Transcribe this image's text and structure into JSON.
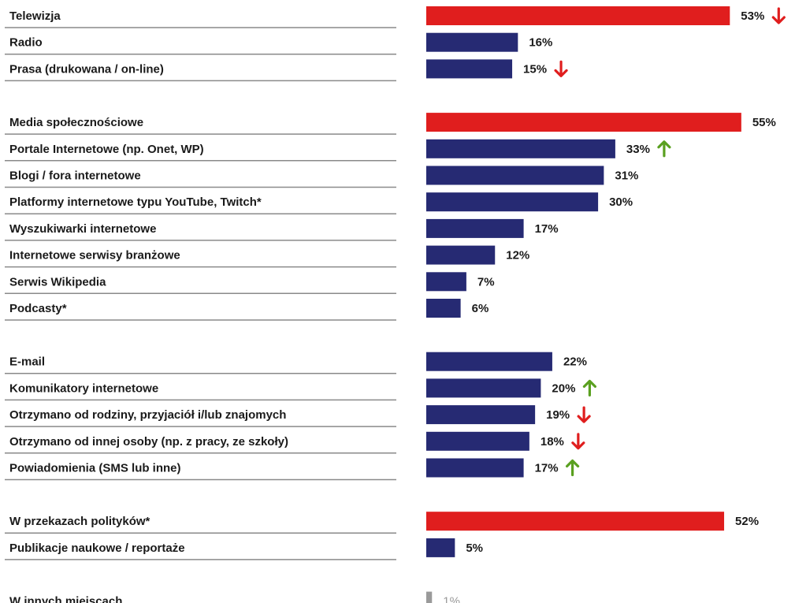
{
  "chart_data": {
    "type": "bar",
    "orientation": "horizontal",
    "unit": "%",
    "xlim": [
      0,
      55
    ],
    "grid": false,
    "legend": "none",
    "colors": {
      "highlight": "#e01e1e",
      "default": "#262a73",
      "muted": "#9a9a9a",
      "up": "#5aa020",
      "down": "#e01e1e"
    },
    "groups": [
      {
        "rows": [
          {
            "label": "Telewizja",
            "value": 53,
            "value_label": "53%",
            "style": "highlight",
            "trend": "down"
          },
          {
            "label": "Radio",
            "value": 16,
            "value_label": "16%",
            "style": "default",
            "trend": ""
          },
          {
            "label": "Prasa (drukowana / on-line)",
            "value": 15,
            "value_label": "15%",
            "style": "default",
            "trend": "down"
          }
        ]
      },
      {
        "rows": [
          {
            "label": "Media społecznościowe",
            "value": 55,
            "value_label": "55%",
            "style": "highlight",
            "trend": ""
          },
          {
            "label": "Portale Internetowe (np. Onet, WP)",
            "value": 33,
            "value_label": "33%",
            "style": "default",
            "trend": "up"
          },
          {
            "label": "Blogi / fora internetowe",
            "value": 31,
            "value_label": "31%",
            "style": "default",
            "trend": ""
          },
          {
            "label": "Platformy internetowe typu YouTube, Twitch*",
            "value": 30,
            "value_label": "30%",
            "style": "default",
            "trend": ""
          },
          {
            "label": "Wyszukiwarki internetowe",
            "value": 17,
            "value_label": "17%",
            "style": "default",
            "trend": ""
          },
          {
            "label": "Internetowe serwisy branżowe",
            "value": 12,
            "value_label": "12%",
            "style": "default",
            "trend": ""
          },
          {
            "label": "Serwis Wikipedia",
            "value": 7,
            "value_label": "7%",
            "style": "default",
            "trend": ""
          },
          {
            "label": "Podcasty*",
            "value": 6,
            "value_label": "6%",
            "style": "default",
            "trend": ""
          }
        ]
      },
      {
        "rows": [
          {
            "label": "E-mail",
            "value": 22,
            "value_label": "22%",
            "style": "default",
            "trend": ""
          },
          {
            "label": "Komunikatory internetowe",
            "value": 20,
            "value_label": "20%",
            "style": "default",
            "trend": "up"
          },
          {
            "label": "Otrzymano od rodziny, przyjaciół i/lub znajomych",
            "value": 19,
            "value_label": "19%",
            "style": "default",
            "trend": "down"
          },
          {
            "label": "Otrzymano od innej osoby (np. z pracy, ze szkoły)",
            "value": 18,
            "value_label": "18%",
            "style": "default",
            "trend": "down"
          },
          {
            "label": "Powiadomienia (SMS lub inne)",
            "value": 17,
            "value_label": "17%",
            "style": "default",
            "trend": "up"
          }
        ]
      },
      {
        "rows": [
          {
            "label": "W przekazach polityków*",
            "value": 52,
            "value_label": "52%",
            "style": "highlight",
            "trend": ""
          },
          {
            "label": "Publikacje naukowe / reportaże",
            "value": 5,
            "value_label": "5%",
            "style": "default",
            "trend": ""
          }
        ]
      },
      {
        "rows": [
          {
            "label": "W innych miejscach",
            "value": 1,
            "value_label": "1%",
            "style": "muted",
            "trend": ""
          }
        ]
      }
    ]
  }
}
